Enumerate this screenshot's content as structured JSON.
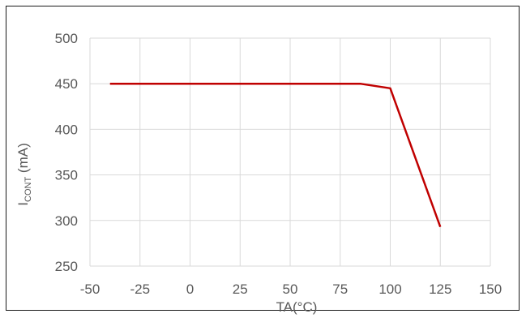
{
  "chart_data": {
    "type": "line",
    "title": "",
    "xlabel": "TA(°C)",
    "ylabel_main": "I",
    "ylabel_sub": "CONT",
    "ylabel_unit": " (mA)",
    "xlim": [
      -50,
      150
    ],
    "ylim": [
      250,
      500
    ],
    "xticks": [
      -50,
      -25,
      0,
      25,
      50,
      75,
      100,
      125,
      150
    ],
    "yticks": [
      250,
      300,
      350,
      400,
      450,
      500
    ],
    "grid": true,
    "legend": "none",
    "series": [
      {
        "color": "#c00000",
        "x": [
          -40,
          85,
          100,
          125
        ],
        "y": [
          450,
          450,
          445,
          293
        ]
      }
    ]
  }
}
